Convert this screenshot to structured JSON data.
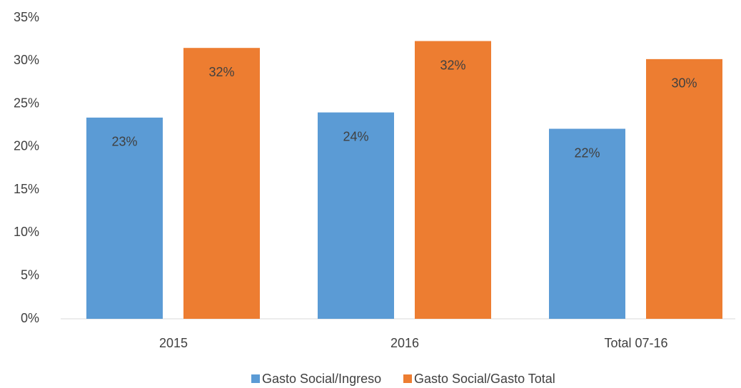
{
  "chart_data": {
    "type": "bar",
    "categories": [
      "2015",
      "2016",
      "Total 07-16"
    ],
    "series": [
      {
        "name": "Gasto Social/Ingreso",
        "color": "#5b9bd5",
        "values": [
          23.4,
          24.0,
          22.1
        ],
        "value_labels": [
          "23%",
          "24%",
          "22%"
        ]
      },
      {
        "name": "Gasto Social/Gasto Total",
        "color": "#ed7d31",
        "values": [
          31.5,
          32.3,
          30.2
        ],
        "value_labels": [
          "32%",
          "32%",
          "30%"
        ]
      }
    ],
    "ylim": [
      0,
      35
    ],
    "yticks": [
      {
        "value": 0,
        "label": "0%"
      },
      {
        "value": 5,
        "label": "5%"
      },
      {
        "value": 10,
        "label": "10%"
      },
      {
        "value": 15,
        "label": "15%"
      },
      {
        "value": 20,
        "label": "20%"
      },
      {
        "value": 25,
        "label": "25%"
      },
      {
        "value": 30,
        "label": "30%"
      },
      {
        "value": 35,
        "label": "35%"
      }
    ],
    "grid": false,
    "legend": "bottom"
  }
}
